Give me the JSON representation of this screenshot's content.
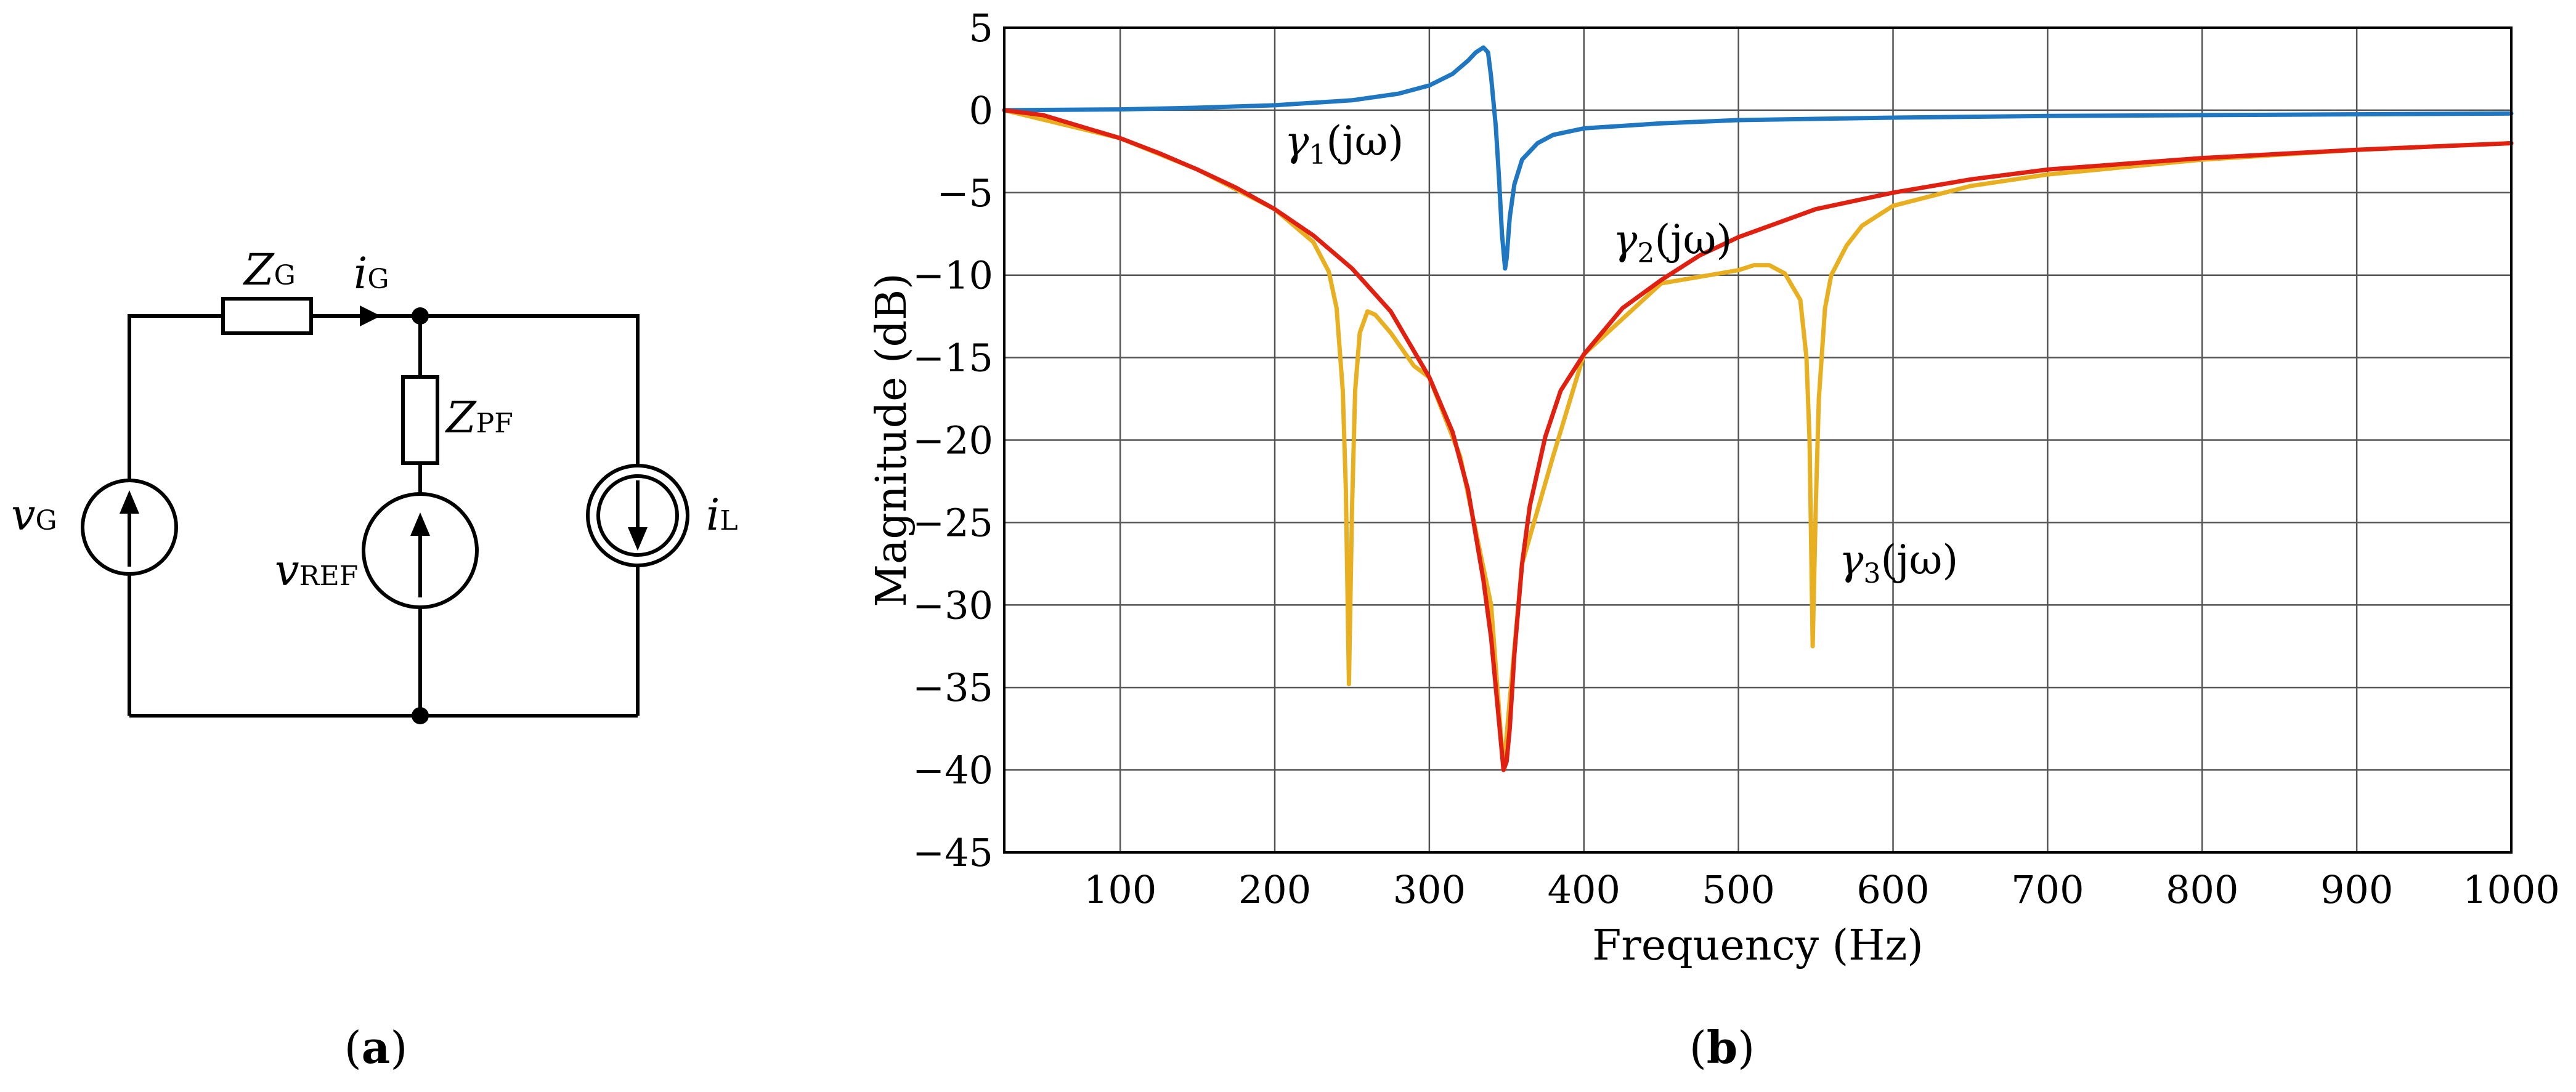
{
  "circuit": {
    "labels": {
      "zg": {
        "main": "Z",
        "sub": "G"
      },
      "ig": {
        "main": "i",
        "sub": "G"
      },
      "zpf": {
        "main": "Z",
        "sub": "PF"
      },
      "vg": {
        "main": "v",
        "sub": "G"
      },
      "vref": {
        "main": "v",
        "sub": "REF"
      },
      "il": {
        "main": "i",
        "sub": "L"
      }
    }
  },
  "panels": {
    "a": {
      "open": "(",
      "letter": "a",
      "close": ")"
    },
    "b": {
      "open": "(",
      "letter": "b",
      "close": ")"
    }
  },
  "chart_data": {
    "type": "line",
    "title": "",
    "xlabel": "Frequency (Hz)",
    "ylabel": "Magnitude (dB)",
    "xlim": [
      25,
      1000
    ],
    "ylim": [
      -45,
      5
    ],
    "grid": true,
    "xticks": [
      100,
      200,
      300,
      400,
      500,
      600,
      700,
      800,
      900,
      1000
    ],
    "xtick_labels": [
      "100",
      "200",
      "300",
      "400",
      "500",
      "600",
      "700",
      "800",
      "900",
      "1000"
    ],
    "yticks": [
      5,
      0,
      -5,
      -10,
      -15,
      -20,
      -25,
      -30,
      -35,
      -40,
      -45
    ],
    "ytick_labels": [
      "5",
      "0",
      "−5",
      "−10",
      "−15",
      "−20",
      "−25",
      "−30",
      "−35",
      "−40",
      "−45"
    ],
    "series": [
      {
        "name": "γ1(jω)",
        "label_main": "γ",
        "label_sub": "1",
        "label_rest": "(jω)",
        "color": "#1f77c1",
        "x": [
          25,
          100,
          150,
          200,
          250,
          280,
          300,
          315,
          325,
          330,
          335,
          338,
          340,
          343,
          345,
          347,
          349,
          350,
          352,
          355,
          360,
          370,
          380,
          400,
          450,
          500,
          600,
          700,
          800,
          900,
          1000
        ],
        "y": [
          0,
          0.05,
          0.15,
          0.3,
          0.6,
          1.0,
          1.5,
          2.2,
          3.0,
          3.5,
          3.8,
          3.5,
          2.0,
          -1.0,
          -4.0,
          -7.5,
          -9.6,
          -9.0,
          -6.5,
          -4.5,
          -3.0,
          -2.0,
          -1.5,
          -1.1,
          -0.8,
          -0.6,
          -0.45,
          -0.35,
          -0.3,
          -0.25,
          -0.2
        ]
      },
      {
        "name": "γ2(jω)",
        "label_main": "γ",
        "label_sub": "2",
        "label_rest": "(jω)",
        "color": "#e02010",
        "x": [
          25,
          50,
          75,
          100,
          125,
          150,
          175,
          200,
          225,
          250,
          275,
          300,
          315,
          325,
          335,
          340,
          345,
          348,
          350,
          352,
          355,
          360,
          365,
          375,
          385,
          400,
          425,
          450,
          475,
          500,
          550,
          600,
          650,
          700,
          800,
          900,
          1000
        ],
        "y": [
          0,
          -0.3,
          -1.0,
          -1.7,
          -2.6,
          -3.6,
          -4.7,
          -6.0,
          -7.6,
          -9.6,
          -12.2,
          -16.2,
          -19.5,
          -23.0,
          -28.5,
          -32.0,
          -37.0,
          -40.0,
          -39.5,
          -37.5,
          -33.0,
          -27.5,
          -24.0,
          -19.8,
          -17.0,
          -14.8,
          -12.0,
          -10.3,
          -8.8,
          -7.7,
          -6.0,
          -5.0,
          -4.2,
          -3.6,
          -2.9,
          -2.4,
          -2.0
        ]
      },
      {
        "name": "γ3(jω)",
        "label_main": "γ",
        "label_sub": "3",
        "label_rest": "(jω)",
        "color": "#e8b020",
        "x": [
          25,
          100,
          150,
          200,
          225,
          235,
          240,
          244,
          246,
          248,
          250,
          252,
          255,
          260,
          265,
          275,
          290,
          300,
          320,
          340,
          348,
          360,
          380,
          400,
          450,
          500,
          510,
          520,
          530,
          540,
          544,
          546,
          548,
          550,
          552,
          556,
          560,
          570,
          580,
          600,
          650,
          700,
          800,
          900,
          1000
        ],
        "y": [
          0,
          -1.7,
          -3.6,
          -6.0,
          -8.0,
          -9.8,
          -12.0,
          -17.0,
          -23.0,
          -34.8,
          -24.0,
          -17.0,
          -13.5,
          -12.2,
          -12.4,
          -13.5,
          -15.5,
          -16.2,
          -21.0,
          -30.0,
          -40.0,
          -27.5,
          -21.0,
          -14.8,
          -10.5,
          -9.7,
          -9.4,
          -9.4,
          -9.9,
          -11.5,
          -15.0,
          -20.0,
          -32.5,
          -24.0,
          -17.5,
          -12.0,
          -10.0,
          -8.2,
          -7.0,
          -5.8,
          -4.6,
          -3.9,
          -3.0,
          -2.4,
          -2.0
        ]
      }
    ]
  }
}
